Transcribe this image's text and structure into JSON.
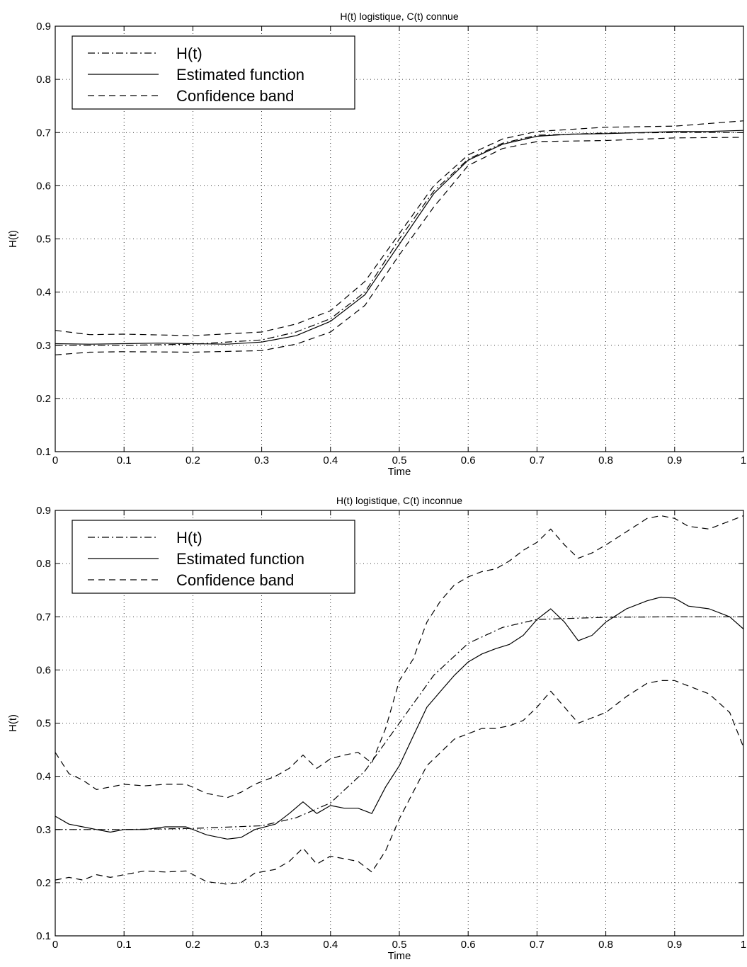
{
  "chart_data": [
    {
      "type": "line",
      "title": "H(t) logistique, C(t) connue",
      "xlabel": "Time",
      "ylabel": "H(t)",
      "xlim": [
        0,
        1
      ],
      "ylim": [
        0.1,
        0.9
      ],
      "xticks": [
        "0",
        "0.1",
        "0.2",
        "0.3",
        "0.4",
        "0.5",
        "0.6",
        "0.7",
        "0.8",
        "0.9",
        "1"
      ],
      "yticks": [
        "0.1",
        "0.2",
        "0.3",
        "0.4",
        "0.5",
        "0.6",
        "0.7",
        "0.8",
        "0.9"
      ],
      "grid": true,
      "legend_position": "top-left",
      "legend": [
        "H(t)",
        "Estimated function",
        "Confidence band"
      ],
      "series": [
        {
          "name": "H(t)",
          "style": "dashdot",
          "x": [
            0,
            0.1,
            0.2,
            0.3,
            0.35,
            0.4,
            0.45,
            0.5,
            0.55,
            0.6,
            0.65,
            0.7,
            0.8,
            0.9,
            1.0
          ],
          "y": [
            0.3,
            0.3,
            0.302,
            0.31,
            0.325,
            0.35,
            0.4,
            0.5,
            0.59,
            0.65,
            0.68,
            0.695,
            0.699,
            0.7,
            0.7
          ]
        },
        {
          "name": "Estimated function",
          "style": "solid",
          "x": [
            0,
            0.05,
            0.1,
            0.15,
            0.2,
            0.25,
            0.3,
            0.35,
            0.4,
            0.45,
            0.5,
            0.55,
            0.6,
            0.65,
            0.7,
            0.75,
            0.8,
            0.85,
            0.9,
            0.95,
            1.0
          ],
          "y": [
            0.303,
            0.302,
            0.303,
            0.304,
            0.303,
            0.302,
            0.306,
            0.318,
            0.345,
            0.395,
            0.49,
            0.585,
            0.648,
            0.678,
            0.693,
            0.697,
            0.698,
            0.7,
            0.702,
            0.702,
            0.704
          ]
        },
        {
          "name": "Confidence band (upper)",
          "style": "dashed",
          "x": [
            0,
            0.05,
            0.1,
            0.2,
            0.3,
            0.35,
            0.4,
            0.45,
            0.5,
            0.55,
            0.6,
            0.65,
            0.7,
            0.8,
            0.9,
            1.0
          ],
          "y": [
            0.328,
            0.32,
            0.321,
            0.318,
            0.325,
            0.34,
            0.365,
            0.42,
            0.51,
            0.6,
            0.658,
            0.688,
            0.702,
            0.71,
            0.712,
            0.722
          ]
        },
        {
          "name": "Confidence band (lower)",
          "style": "dashed",
          "x": [
            0,
            0.05,
            0.1,
            0.2,
            0.3,
            0.35,
            0.4,
            0.45,
            0.5,
            0.55,
            0.6,
            0.65,
            0.7,
            0.8,
            0.9,
            1.0
          ],
          "y": [
            0.282,
            0.287,
            0.288,
            0.287,
            0.29,
            0.302,
            0.325,
            0.375,
            0.47,
            0.56,
            0.638,
            0.67,
            0.683,
            0.685,
            0.69,
            0.691
          ]
        }
      ]
    },
    {
      "type": "line",
      "title": "H(t) logistique, C(t) inconnue",
      "xlabel": "Time",
      "ylabel": "H(t)",
      "xlim": [
        0,
        1
      ],
      "ylim": [
        0.1,
        0.9
      ],
      "xticks": [
        "0",
        "0.1",
        "0.2",
        "0.3",
        "0.4",
        "0.5",
        "0.6",
        "0.7",
        "0.8",
        "0.9",
        "1"
      ],
      "yticks": [
        "0.1",
        "0.2",
        "0.3",
        "0.4",
        "0.5",
        "0.6",
        "0.7",
        "0.8",
        "0.9"
      ],
      "grid": true,
      "legend_position": "top-left",
      "legend": [
        "H(t)",
        "Estimated function",
        "Confidence band"
      ],
      "series": [
        {
          "name": "H(t)",
          "style": "dashdot",
          "x": [
            0,
            0.1,
            0.2,
            0.3,
            0.35,
            0.4,
            0.45,
            0.5,
            0.55,
            0.6,
            0.65,
            0.7,
            0.8,
            0.9,
            1.0
          ],
          "y": [
            0.3,
            0.3,
            0.302,
            0.307,
            0.322,
            0.35,
            0.41,
            0.5,
            0.59,
            0.65,
            0.68,
            0.695,
            0.699,
            0.7,
            0.7
          ]
        },
        {
          "name": "Estimated function",
          "style": "solid",
          "x": [
            0,
            0.02,
            0.04,
            0.06,
            0.08,
            0.1,
            0.13,
            0.16,
            0.19,
            0.22,
            0.25,
            0.27,
            0.29,
            0.32,
            0.34,
            0.36,
            0.38,
            0.4,
            0.42,
            0.44,
            0.46,
            0.48,
            0.5,
            0.52,
            0.54,
            0.56,
            0.58,
            0.6,
            0.62,
            0.64,
            0.66,
            0.68,
            0.7,
            0.72,
            0.74,
            0.76,
            0.78,
            0.8,
            0.83,
            0.86,
            0.88,
            0.9,
            0.92,
            0.95,
            0.98,
            1.0
          ],
          "y": [
            0.325,
            0.31,
            0.305,
            0.3,
            0.295,
            0.3,
            0.3,
            0.305,
            0.305,
            0.29,
            0.282,
            0.285,
            0.3,
            0.31,
            0.33,
            0.352,
            0.33,
            0.345,
            0.34,
            0.34,
            0.33,
            0.38,
            0.42,
            0.475,
            0.53,
            0.56,
            0.59,
            0.615,
            0.63,
            0.64,
            0.648,
            0.665,
            0.695,
            0.715,
            0.69,
            0.655,
            0.665,
            0.69,
            0.715,
            0.73,
            0.737,
            0.735,
            0.72,
            0.715,
            0.7,
            0.677
          ]
        },
        {
          "name": "Confidence band (upper)",
          "style": "dashed",
          "x": [
            0,
            0.02,
            0.04,
            0.06,
            0.08,
            0.1,
            0.13,
            0.16,
            0.19,
            0.22,
            0.25,
            0.27,
            0.29,
            0.32,
            0.34,
            0.36,
            0.38,
            0.4,
            0.42,
            0.44,
            0.46,
            0.48,
            0.5,
            0.52,
            0.54,
            0.56,
            0.58,
            0.6,
            0.62,
            0.64,
            0.66,
            0.68,
            0.7,
            0.72,
            0.74,
            0.76,
            0.78,
            0.8,
            0.83,
            0.86,
            0.88,
            0.9,
            0.92,
            0.95,
            0.98,
            1.0
          ],
          "y": [
            0.445,
            0.405,
            0.393,
            0.375,
            0.38,
            0.385,
            0.382,
            0.385,
            0.385,
            0.368,
            0.36,
            0.37,
            0.385,
            0.4,
            0.415,
            0.44,
            0.415,
            0.433,
            0.44,
            0.445,
            0.425,
            0.49,
            0.58,
            0.62,
            0.69,
            0.73,
            0.76,
            0.775,
            0.785,
            0.79,
            0.805,
            0.825,
            0.84,
            0.865,
            0.835,
            0.81,
            0.82,
            0.835,
            0.86,
            0.885,
            0.89,
            0.885,
            0.87,
            0.865,
            0.88,
            0.89
          ]
        },
        {
          "name": "Confidence band (lower)",
          "style": "dashed",
          "x": [
            0,
            0.02,
            0.04,
            0.06,
            0.08,
            0.1,
            0.13,
            0.16,
            0.19,
            0.22,
            0.25,
            0.27,
            0.29,
            0.32,
            0.34,
            0.36,
            0.38,
            0.4,
            0.42,
            0.44,
            0.46,
            0.48,
            0.5,
            0.52,
            0.54,
            0.56,
            0.58,
            0.6,
            0.62,
            0.64,
            0.66,
            0.68,
            0.7,
            0.72,
            0.74,
            0.76,
            0.78,
            0.8,
            0.83,
            0.86,
            0.88,
            0.9,
            0.92,
            0.95,
            0.98,
            1.0
          ],
          "y": [
            0.205,
            0.21,
            0.205,
            0.215,
            0.21,
            0.215,
            0.222,
            0.22,
            0.222,
            0.202,
            0.197,
            0.2,
            0.218,
            0.225,
            0.24,
            0.265,
            0.235,
            0.25,
            0.245,
            0.24,
            0.22,
            0.26,
            0.32,
            0.37,
            0.42,
            0.445,
            0.47,
            0.48,
            0.49,
            0.49,
            0.495,
            0.505,
            0.53,
            0.56,
            0.53,
            0.5,
            0.51,
            0.52,
            0.55,
            0.575,
            0.58,
            0.58,
            0.57,
            0.555,
            0.52,
            0.455
          ]
        }
      ]
    }
  ]
}
